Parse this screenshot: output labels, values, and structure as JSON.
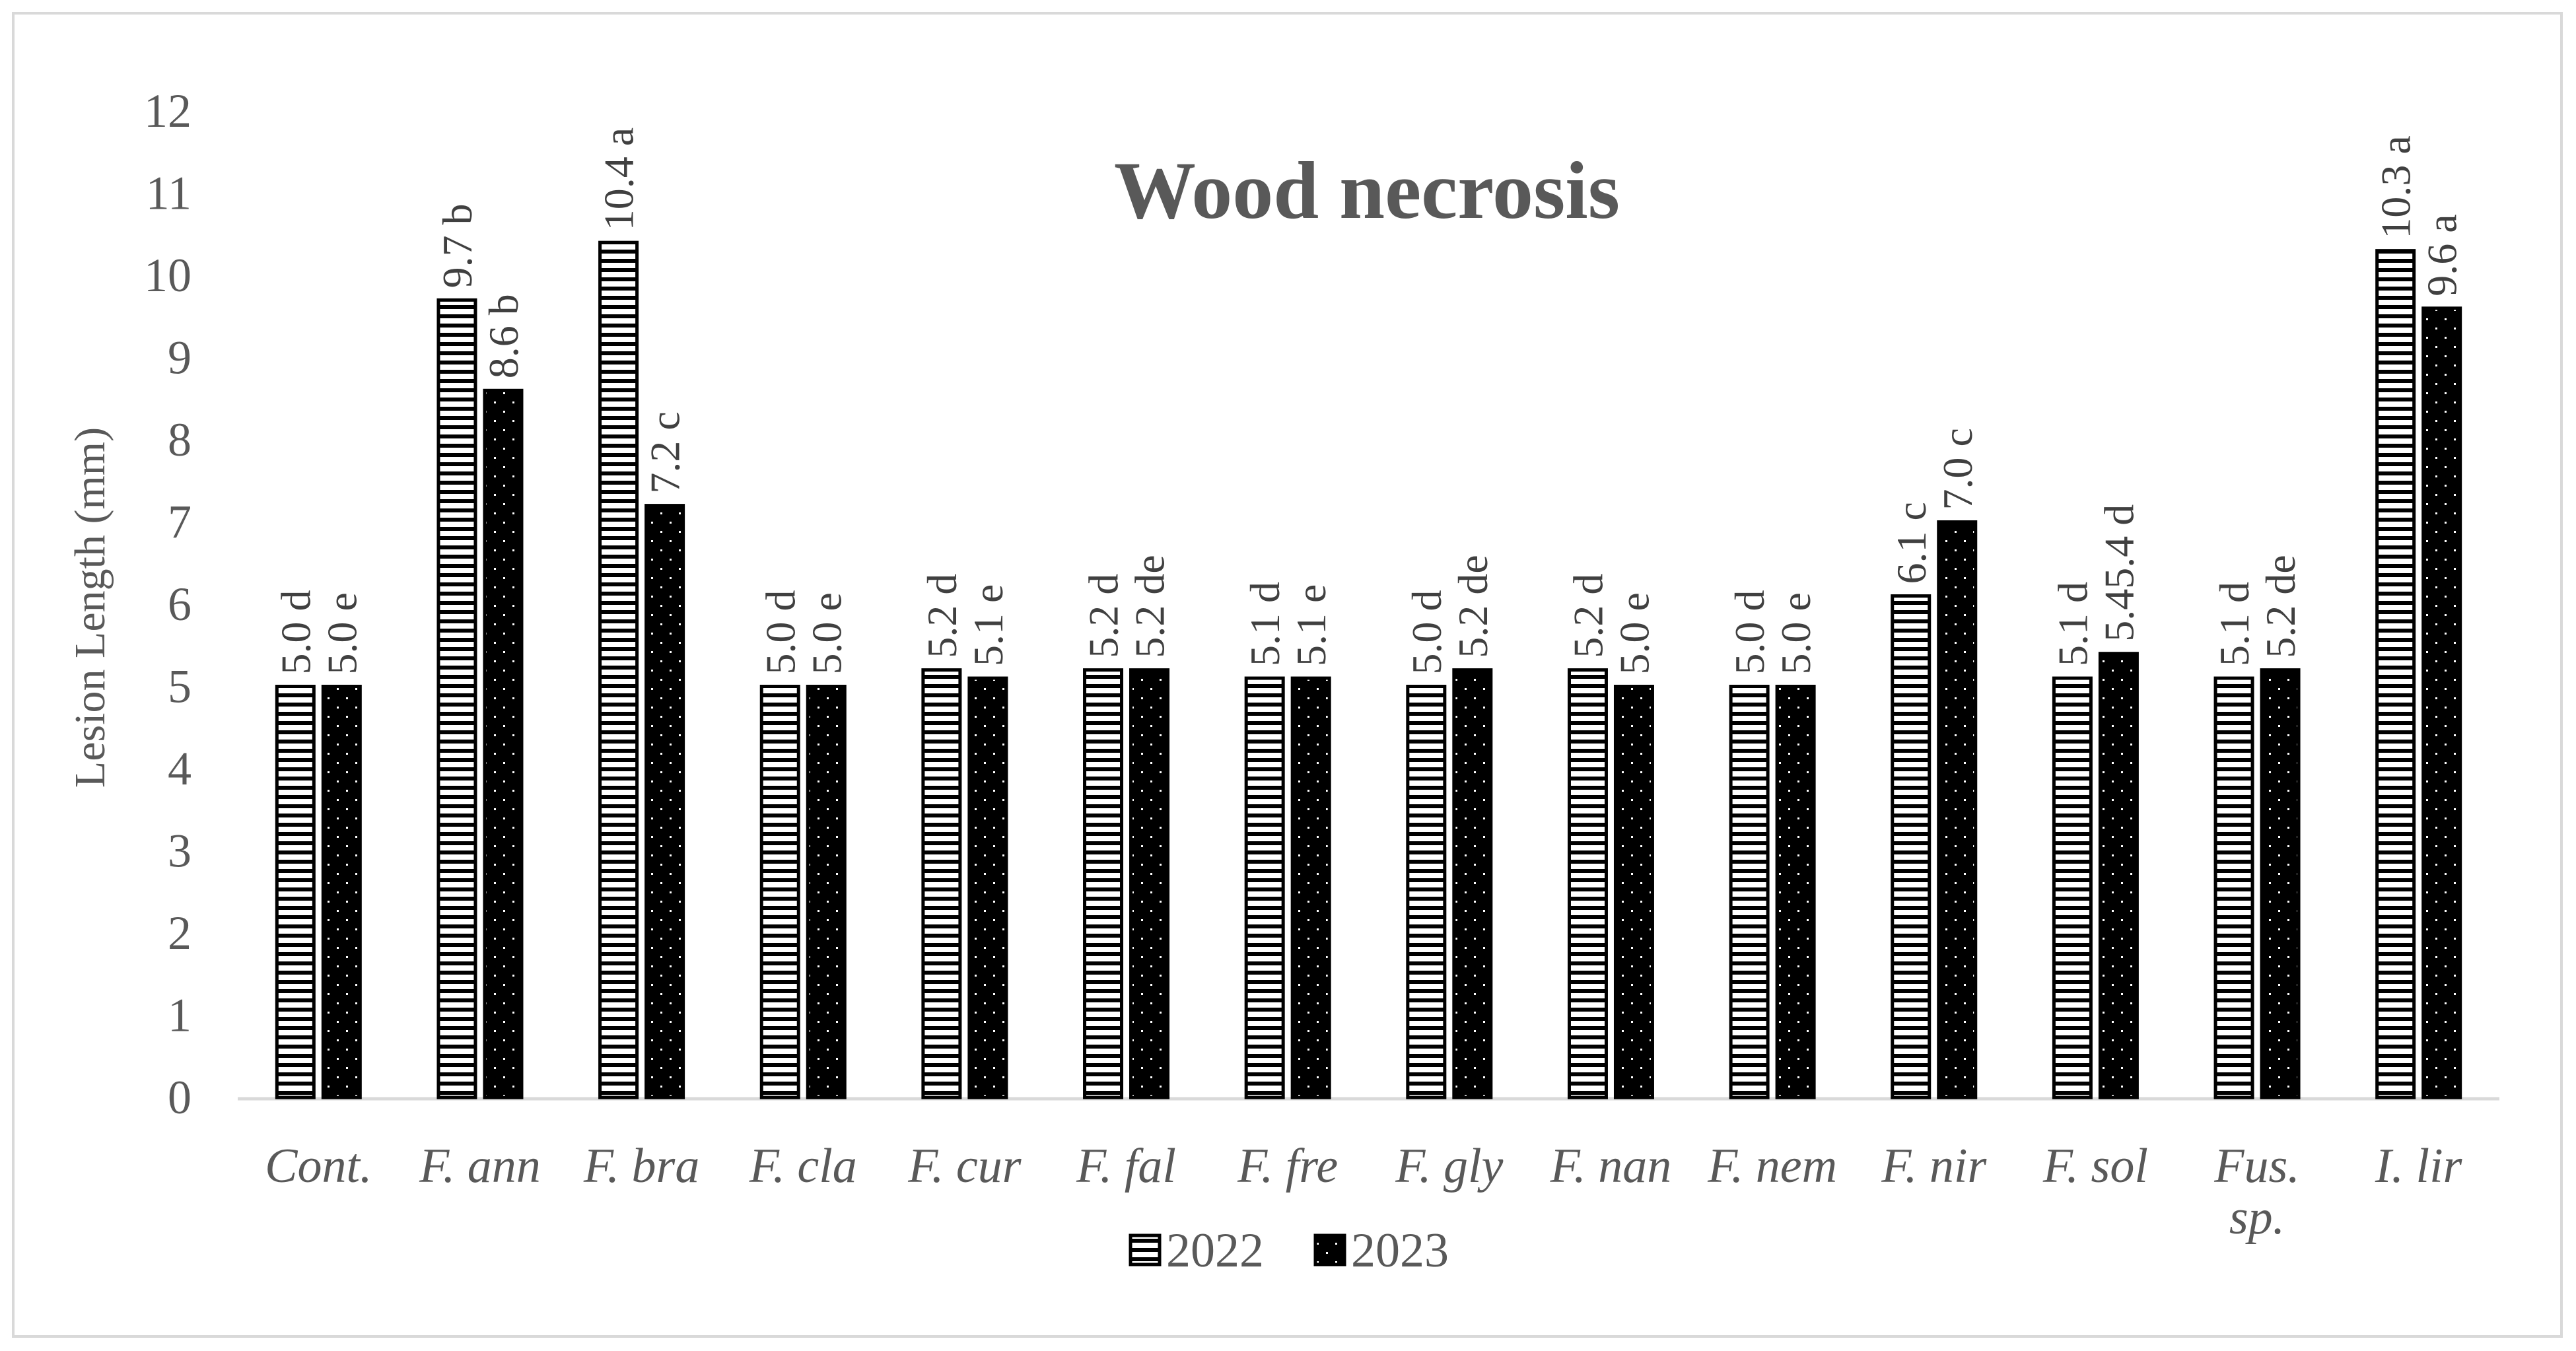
{
  "chart_data": {
    "type": "bar",
    "title": "Wood necrosis",
    "xlabel": "",
    "ylabel": "Lesion Length (mm)",
    "ylim": [
      0,
      12
    ],
    "yticks": [
      "0",
      "1",
      "2",
      "3",
      "4",
      "5",
      "6",
      "7",
      "8",
      "9",
      "10",
      "11",
      "12"
    ],
    "grid": false,
    "legend_position": "bottom",
    "categories": [
      "Cont.",
      "F. ann",
      "F. bra",
      "F. cla",
      "F. cur",
      "F. fal",
      "F. fre",
      "F. gly",
      "F. nan",
      "F. nem",
      "F. nir",
      "F. sol",
      "Fus.\nsp.",
      "I. lir"
    ],
    "series": [
      {
        "name": "2022",
        "pattern": "horizontal-stripes",
        "values": [
          5.0,
          9.7,
          10.4,
          5.0,
          5.2,
          5.2,
          5.1,
          5.0,
          5.2,
          5.0,
          6.1,
          5.1,
          5.1,
          10.3
        ],
        "labels": [
          "5.0 d",
          "9.7 b",
          "10.4 a",
          "5.0 d",
          "5.2 d",
          "5.2 d",
          "5.1 d",
          "5.0 d",
          "5.2 d",
          "5.0 d",
          "6.1 c",
          "5.1 d",
          "5.1 d",
          "10.3 a"
        ]
      },
      {
        "name": "2023",
        "pattern": "black-dotted",
        "values": [
          5.0,
          8.6,
          7.2,
          5.0,
          5.1,
          5.2,
          5.1,
          5.2,
          5.0,
          5.0,
          7.0,
          5.4,
          5.2,
          9.6
        ],
        "labels": [
          "5.0 e",
          "8.6 b",
          "7.2 c",
          "5.0 e",
          "5.1 e",
          "5.2 de",
          "5.1 e",
          "5.2 de",
          "5.0 e",
          "5.0 e",
          "7.0 c",
          "5.45.4 d",
          "5.2 de",
          "9.6 a"
        ]
      }
    ],
    "colors": {
      "bar_fill_2023": "#000000",
      "bar_stroke": "#000000",
      "axis": "#d9d9d9",
      "text": "#595959"
    }
  }
}
